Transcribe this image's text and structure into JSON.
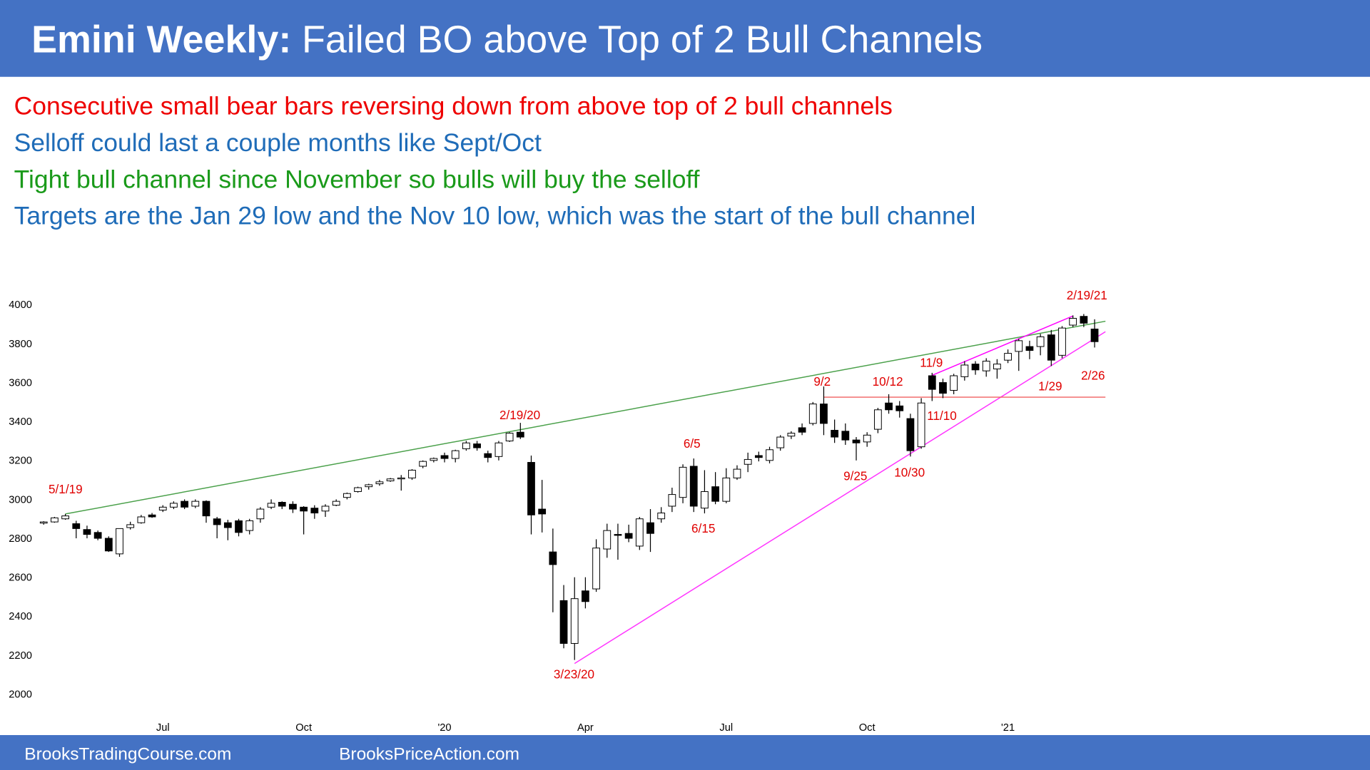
{
  "header": {
    "title_lead": "Emini Weekly:",
    "title": "Failed BO above Top of 2 Bull Channels"
  },
  "notes": [
    {
      "text": "Consecutive small bear bars reversing down from above top of 2 bull channels",
      "color": "#ee0000"
    },
    {
      "text": "Selloff could last a couple months like Sept/Oct",
      "color": "#1f6cb8"
    },
    {
      "text": "Tight bull channel since November so bulls will buy the selloff",
      "color": "#1a9a1a"
    },
    {
      "text": "Targets are the Jan 29 low and the Nov 10 low, which was the start of the bull channel",
      "color": "#1f6cb8"
    }
  ],
  "footer": [
    "BrooksTradingCourse.com",
    "BrooksPriceAction.com"
  ],
  "chart_data": {
    "type": "candlestick",
    "categories": [
      null,
      null,
      null,
      null,
      null,
      null,
      null,
      null,
      null,
      null,
      null,
      "Jul",
      null,
      null,
      null,
      null,
      null,
      null,
      null,
      null,
      null,
      null,
      null,
      null,
      "Oct",
      null,
      null,
      null,
      null,
      null,
      null,
      null,
      null,
      null,
      null,
      null,
      null,
      "'20",
      null,
      null,
      null,
      null,
      null,
      null,
      null,
      null,
      null,
      null,
      null,
      null,
      "Apr",
      null,
      null,
      null,
      null,
      null,
      null,
      null,
      null,
      null,
      null,
      null,
      null,
      "Jul",
      null,
      null,
      null,
      null,
      null,
      null,
      null,
      null,
      null,
      null,
      null,
      null,
      "Oct",
      null,
      null,
      null,
      null,
      null,
      null,
      null,
      null,
      null,
      null,
      null,
      null,
      "'21",
      null,
      null,
      null,
      null,
      null,
      null,
      null,
      null
    ],
    "open": [
      2878,
      2884,
      2900,
      2875,
      2845,
      2830,
      2800,
      2720,
      2855,
      2880,
      2920,
      2945,
      2960,
      2990,
      2965,
      2990,
      2900,
      2880,
      2890,
      2840,
      2900,
      2960,
      2985,
      2975,
      2960,
      2955,
      2940,
      2970,
      3010,
      3040,
      3065,
      3080,
      3095,
      3105,
      3110,
      3170,
      3200,
      3225,
      3210,
      3260,
      3285,
      3235,
      3220,
      3300,
      3345,
      3190,
      2950,
      2730,
      2480,
      2260,
      2530,
      2540,
      2745,
      2820,
      2825,
      2760,
      2880,
      2900,
      2965,
      3010,
      3170,
      2955,
      3065,
      2990,
      3110,
      3180,
      3225,
      3200,
      3265,
      3325,
      3368,
      3390,
      3490,
      3355,
      3350,
      3305,
      3295,
      3360,
      3495,
      3480,
      3415,
      3270,
      3635,
      3600,
      3560,
      3630,
      3695,
      3660,
      3670,
      3715,
      3760,
      3785,
      3785,
      3845,
      3740,
      3895,
      3940,
      3875
    ],
    "high": [
      2888,
      2910,
      2925,
      2890,
      2865,
      2840,
      2810,
      2850,
      2885,
      2920,
      2930,
      2970,
      2990,
      3000,
      3000,
      2995,
      2910,
      2895,
      2900,
      2900,
      2960,
      3000,
      2990,
      2990,
      2965,
      2970,
      2975,
      3000,
      3035,
      3065,
      3080,
      3100,
      3110,
      3125,
      3155,
      3200,
      3215,
      3240,
      3255,
      3300,
      3300,
      3250,
      3300,
      3345,
      3393,
      3225,
      3100,
      2850,
      2560,
      2600,
      2600,
      2795,
      2875,
      2875,
      2870,
      2910,
      2950,
      2960,
      3060,
      3180,
      3210,
      3150,
      3140,
      3160,
      3175,
      3240,
      3245,
      3270,
      3330,
      3350,
      3390,
      3500,
      3580,
      3410,
      3390,
      3320,
      3345,
      3470,
      3540,
      3505,
      3440,
      3520,
      3650,
      3620,
      3645,
      3710,
      3710,
      3725,
      3720,
      3770,
      3825,
      3815,
      3850,
      3870,
      3890,
      3945,
      3952,
      3925
    ],
    "low": [
      2870,
      2880,
      2895,
      2800,
      2800,
      2790,
      2730,
      2705,
      2845,
      2875,
      2905,
      2935,
      2950,
      2950,
      2955,
      2880,
      2800,
      2790,
      2810,
      2820,
      2880,
      2950,
      2950,
      2930,
      2820,
      2900,
      2910,
      2965,
      3000,
      3035,
      3050,
      3070,
      3090,
      3045,
      3100,
      3160,
      3190,
      3190,
      3190,
      3250,
      3250,
      3190,
      3200,
      3295,
      3310,
      2820,
      2830,
      2420,
      2235,
      2175,
      2440,
      2525,
      2700,
      2690,
      2780,
      2740,
      2730,
      2880,
      2935,
      2980,
      2935,
      2928,
      2975,
      2980,
      3100,
      3140,
      3195,
      3185,
      3250,
      3310,
      3330,
      3380,
      3330,
      3290,
      3280,
      3200,
      3270,
      3340,
      3440,
      3420,
      3220,
      3260,
      3505,
      3520,
      3540,
      3610,
      3640,
      3630,
      3620,
      3700,
      3660,
      3720,
      3740,
      3685,
      3725,
      3885,
      3885,
      3780
    ],
    "close": [
      2884,
      2905,
      2915,
      2850,
      2820,
      2800,
      2735,
      2850,
      2870,
      2910,
      2910,
      2960,
      2980,
      2960,
      2990,
      2915,
      2870,
      2855,
      2830,
      2890,
      2950,
      2980,
      2965,
      2950,
      2940,
      2930,
      2965,
      2990,
      3030,
      3060,
      3075,
      3090,
      3105,
      3110,
      3150,
      3195,
      3210,
      3210,
      3250,
      3290,
      3265,
      3215,
      3290,
      3340,
      3320,
      2920,
      2925,
      2665,
      2260,
      2490,
      2475,
      2750,
      2840,
      2815,
      2800,
      2900,
      2825,
      2930,
      3025,
      3165,
      2965,
      3040,
      2990,
      3110,
      3155,
      3205,
      3215,
      3255,
      3320,
      3340,
      3345,
      3490,
      3390,
      3320,
      3305,
      3290,
      3330,
      3460,
      3460,
      3455,
      3250,
      3495,
      3565,
      3545,
      3635,
      3690,
      3665,
      3710,
      3695,
      3750,
      3815,
      3765,
      3835,
      3715,
      3880,
      3930,
      3905,
      3810
    ],
    "up_color": "#ffffff",
    "down_color": "#000000",
    "ylim": [
      2000,
      4000
    ],
    "yticks": [
      2000,
      2200,
      2400,
      2600,
      2800,
      3000,
      3200,
      3400,
      3600,
      3800,
      4000
    ],
    "grid": false,
    "trendlines": [
      {
        "x": [
          2,
          98
        ],
        "y": [
          2925,
          3915
        ],
        "color": "#4aa04a"
      },
      {
        "x": [
          49,
          98
        ],
        "y": [
          2157,
          3861
        ],
        "color": "#ff33ff"
      },
      {
        "x": [
          82,
          95
        ],
        "y": [
          3637,
          3942
        ],
        "color": "#ff00ff"
      },
      {
        "x": [
          72,
          98
        ],
        "y": [
          3525,
          3525
        ],
        "color": "#f06060"
      }
    ],
    "annotations": [
      "5/1/19",
      "2/19/20",
      "6/5",
      "6/15",
      "3/23/20",
      "9/2",
      "9/25",
      "10/12",
      "10/30",
      "11/9",
      "11/10",
      "1/29",
      "2/26",
      "2/19/21"
    ]
  }
}
